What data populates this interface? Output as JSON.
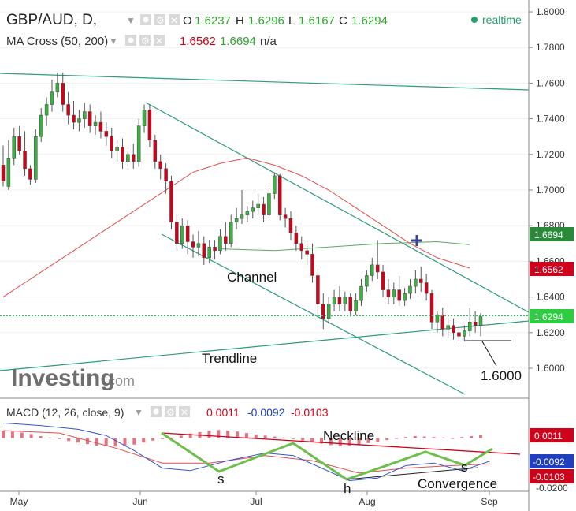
{
  "header": {
    "symbol": "GBP/AUD, D,",
    "o_label": "O",
    "o_value": "1.6237",
    "h_label": "H",
    "h_value": "1.6296",
    "l_label": "L",
    "l_value": "1.6167",
    "c_label": "C",
    "c_value": "1.6294",
    "realtime": "realtime"
  },
  "ma_header": {
    "title": "MA Cross (50, 200)",
    "ma50": "1.6562",
    "ma200": "1.6694",
    "extra": "n/a"
  },
  "macd_header": {
    "title": "MACD (12, 26, close, 9)",
    "v1": "0.0011",
    "v2": "-0.0092",
    "v3": "-0.0103"
  },
  "watermark": {
    "brand": "Investing",
    "suffix": ".com"
  },
  "annotations": {
    "channel": "Channel",
    "trendline": "Trendline",
    "level": "1.6000",
    "neckline": "Neckline",
    "s1": "s",
    "h": "h",
    "s2": "s",
    "convergence": "Convergence"
  },
  "badges": {
    "ma200": "1.6694",
    "ma50": "1.6562",
    "close": "1.6294",
    "macd_hist": "0.0011",
    "macd_line": "-0.0092",
    "macd_signal": "-0.0103"
  },
  "colors": {
    "up": "#3cb043",
    "down": "#d0021b",
    "channel": "#2e9b7a",
    "ma50": "#e05050",
    "ma200": "#5fa85f",
    "close_line": "#22c55e",
    "macd_line": "#3355cc",
    "macd_signal": "#e05050",
    "green_pattern": "#6cc04a"
  },
  "chart_data": [
    {
      "type": "candlestick",
      "title": "GBP/AUD, D,",
      "y_ticks": [
        "1.8000",
        "1.7800",
        "1.7600",
        "1.7400",
        "1.7200",
        "1.7000",
        "1.6800",
        "1.6600",
        "1.6400",
        "1.6200",
        "1.6000"
      ],
      "x_ticks": [
        "May",
        "Jun",
        "Jul",
        "Aug",
        "Sep"
      ],
      "ylim": [
        1.585,
        1.805
      ],
      "candles": [
        [
          1.714,
          1.725,
          1.705,
          1.702
        ],
        [
          1.702,
          1.728,
          1.718,
          1.7
        ],
        [
          1.718,
          1.735,
          1.73,
          1.714
        ],
        [
          1.73,
          1.736,
          1.722,
          1.72
        ],
        [
          1.722,
          1.733,
          1.712,
          1.708
        ],
        [
          1.712,
          1.714,
          1.706,
          1.703
        ],
        [
          1.706,
          1.734,
          1.73,
          1.704
        ],
        [
          1.73,
          1.746,
          1.742,
          1.727
        ],
        [
          1.742,
          1.752,
          1.748,
          1.736
        ],
        [
          1.748,
          1.762,
          1.755,
          1.744
        ],
        [
          1.755,
          1.766,
          1.76,
          1.752
        ],
        [
          1.76,
          1.766,
          1.748,
          1.744
        ],
        [
          1.748,
          1.755,
          1.742,
          1.737
        ],
        [
          1.742,
          1.75,
          1.738,
          1.734
        ],
        [
          1.738,
          1.745,
          1.74,
          1.733
        ],
        [
          1.74,
          1.749,
          1.744,
          1.735
        ],
        [
          1.744,
          1.748,
          1.736,
          1.732
        ],
        [
          1.736,
          1.742,
          1.738,
          1.731
        ],
        [
          1.738,
          1.744,
          1.733,
          1.729
        ],
        [
          1.733,
          1.738,
          1.73,
          1.725
        ],
        [
          1.73,
          1.735,
          1.722,
          1.718
        ],
        [
          1.722,
          1.728,
          1.724,
          1.716
        ],
        [
          1.724,
          1.729,
          1.716,
          1.712
        ],
        [
          1.716,
          1.722,
          1.72,
          1.713
        ],
        [
          1.72,
          1.726,
          1.716,
          1.712
        ],
        [
          1.716,
          1.74,
          1.736,
          1.713
        ],
        [
          1.736,
          1.748,
          1.745,
          1.732
        ],
        [
          1.745,
          1.748,
          1.728,
          1.724
        ],
        [
          1.728,
          1.731,
          1.716,
          1.712
        ],
        [
          1.716,
          1.72,
          1.712,
          1.706
        ],
        [
          1.712,
          1.715,
          1.705,
          1.698
        ],
        [
          1.705,
          1.708,
          1.682,
          1.678
        ],
        [
          1.682,
          1.686,
          1.67,
          1.666
        ],
        [
          1.67,
          1.684,
          1.68,
          1.667
        ],
        [
          1.68,
          1.683,
          1.671,
          1.664
        ],
        [
          1.671,
          1.675,
          1.668,
          1.662
        ],
        [
          1.668,
          1.677,
          1.67,
          1.663
        ],
        [
          1.67,
          1.674,
          1.662,
          1.658
        ],
        [
          1.662,
          1.672,
          1.668,
          1.659
        ],
        [
          1.668,
          1.672,
          1.666,
          1.661
        ],
        [
          1.666,
          1.678,
          1.674,
          1.664
        ],
        [
          1.674,
          1.682,
          1.67,
          1.666
        ],
        [
          1.67,
          1.686,
          1.682,
          1.668
        ],
        [
          1.682,
          1.69,
          1.684,
          1.678
        ],
        [
          1.684,
          1.7,
          1.686,
          1.681
        ],
        [
          1.686,
          1.691,
          1.688,
          1.682
        ],
        [
          1.688,
          1.694,
          1.69,
          1.684
        ],
        [
          1.69,
          1.698,
          1.692,
          1.686
        ],
        [
          1.692,
          1.696,
          1.686,
          1.682
        ],
        [
          1.686,
          1.701,
          1.698,
          1.684
        ],
        [
          1.698,
          1.71,
          1.708,
          1.695
        ],
        [
          1.708,
          1.709,
          1.686,
          1.683
        ],
        [
          1.686,
          1.69,
          1.684,
          1.679
        ],
        [
          1.684,
          1.688,
          1.676,
          1.672
        ],
        [
          1.676,
          1.68,
          1.67,
          1.666
        ],
        [
          1.67,
          1.674,
          1.666,
          1.661
        ],
        [
          1.666,
          1.67,
          1.664,
          1.658
        ],
        [
          1.664,
          1.67,
          1.652,
          1.648
        ],
        [
          1.652,
          1.656,
          1.636,
          1.628
        ],
        [
          1.636,
          1.642,
          1.628,
          1.622
        ],
        [
          1.628,
          1.64,
          1.636,
          1.625
        ],
        [
          1.636,
          1.644,
          1.64,
          1.632
        ],
        [
          1.64,
          1.646,
          1.636,
          1.632
        ],
        [
          1.636,
          1.643,
          1.64,
          1.632
        ],
        [
          1.64,
          1.642,
          1.632,
          1.629
        ],
        [
          1.632,
          1.642,
          1.638,
          1.63
        ],
        [
          1.638,
          1.65,
          1.646,
          1.635
        ],
        [
          1.646,
          1.655,
          1.652,
          1.643
        ],
        [
          1.652,
          1.662,
          1.658,
          1.649
        ],
        [
          1.658,
          1.672,
          1.654,
          1.65
        ],
        [
          1.654,
          1.658,
          1.644,
          1.64
        ],
        [
          1.644,
          1.65,
          1.64,
          1.636
        ],
        [
          1.64,
          1.648,
          1.644,
          1.636
        ],
        [
          1.644,
          1.652,
          1.638,
          1.635
        ],
        [
          1.638,
          1.645,
          1.642,
          1.635
        ],
        [
          1.642,
          1.65,
          1.646,
          1.639
        ],
        [
          1.646,
          1.655,
          1.65,
          1.642
        ],
        [
          1.65,
          1.657,
          1.648,
          1.643
        ],
        [
          1.648,
          1.653,
          1.642,
          1.638
        ],
        [
          1.642,
          1.644,
          1.626,
          1.622
        ],
        [
          1.626,
          1.632,
          1.63,
          1.62
        ],
        [
          1.63,
          1.634,
          1.622,
          1.618
        ],
        [
          1.622,
          1.628,
          1.624,
          1.617
        ],
        [
          1.624,
          1.628,
          1.62,
          1.616
        ],
        [
          1.62,
          1.624,
          1.618,
          1.615
        ],
        [
          1.618,
          1.624,
          1.621,
          1.615
        ],
        [
          1.621,
          1.634,
          1.626,
          1.618
        ],
        [
          1.626,
          1.632,
          1.624,
          1.62
        ],
        [
          1.624,
          1.631,
          1.629,
          1.618
        ]
      ],
      "ma50": [
        [
          0,
          1.64
        ],
        [
          5,
          1.65
        ],
        [
          10,
          1.66
        ],
        [
          15,
          1.67
        ],
        [
          20,
          1.68
        ],
        [
          25,
          1.69
        ],
        [
          30,
          1.7
        ],
        [
          35,
          1.71
        ],
        [
          40,
          1.715
        ],
        [
          45,
          1.718
        ],
        [
          50,
          1.714
        ],
        [
          55,
          1.708
        ],
        [
          60,
          1.7
        ],
        [
          65,
          1.69
        ],
        [
          70,
          1.68
        ],
        [
          75,
          1.67
        ],
        [
          80,
          1.662
        ],
        [
          86,
          1.6562
        ]
      ],
      "ma200": [
        [
          40,
          1.667
        ],
        [
          50,
          1.666
        ],
        [
          60,
          1.668
        ],
        [
          70,
          1.67
        ],
        [
          80,
          1.671
        ],
        [
          86,
          1.6694
        ]
      ],
      "last_close": 1.6294
    },
    {
      "type": "macd",
      "title": "MACD (12, 26, close, 9)",
      "y_ticks": [
        "0.0011",
        "-0.0092",
        "-0.0103",
        "-0.0200"
      ],
      "x_ticks": [
        "May",
        "Jun",
        "Jul",
        "Aug",
        "Sep"
      ],
      "ylim": [
        -0.0225,
        0.0065
      ],
      "histogram": [
        0.0028,
        0.0026,
        0.0022,
        0.0016,
        0.0008,
        0.0002,
        -0.0004,
        -0.0012,
        -0.0018,
        -0.0024,
        -0.003,
        -0.0032,
        -0.0034,
        -0.003,
        -0.0026,
        -0.0018,
        -0.001,
        -0.0004,
        0.0002,
        0.001,
        0.0018,
        0.0024,
        0.003,
        0.0032,
        0.003,
        0.0026,
        0.002,
        0.0014,
        0.001,
        0.0006,
        0.0002,
        -0.0004,
        -0.001,
        -0.0016,
        -0.0022,
        -0.0028,
        -0.0032,
        -0.003,
        -0.0026,
        -0.002,
        -0.0014,
        -0.0008,
        -0.0002,
        0.0004,
        0.0008,
        0.0006,
        0.0004,
        0.0002,
        0.0,
        0.0004,
        0.0008,
        0.0011
      ],
      "macd_line": [
        [
          0,
          0.006
        ],
        [
          4,
          0.005
        ],
        [
          8,
          0.0035
        ],
        [
          11,
          0.001
        ],
        [
          14,
          -0.005
        ],
        [
          17,
          -0.012
        ],
        [
          20,
          -0.013
        ],
        [
          24,
          -0.009
        ],
        [
          28,
          -0.006
        ],
        [
          31,
          -0.007
        ],
        [
          34,
          -0.012
        ],
        [
          37,
          -0.017
        ],
        [
          40,
          -0.016
        ],
        [
          43,
          -0.011
        ],
        [
          46,
          -0.01
        ],
        [
          49,
          -0.013
        ],
        [
          52,
          -0.0092
        ]
      ],
      "signal_line": [
        [
          0,
          0.003
        ],
        [
          6,
          0.002
        ],
        [
          12,
          -0.004
        ],
        [
          17,
          -0.01
        ],
        [
          22,
          -0.01
        ],
        [
          28,
          -0.007
        ],
        [
          33,
          -0.009
        ],
        [
          38,
          -0.014
        ],
        [
          43,
          -0.012
        ],
        [
          48,
          -0.011
        ],
        [
          52,
          -0.0103
        ]
      ],
      "pattern": {
        "labels": [
          "s",
          "h",
          "s"
        ],
        "neckline": "Neckline",
        "convergence": "Convergence"
      }
    }
  ]
}
